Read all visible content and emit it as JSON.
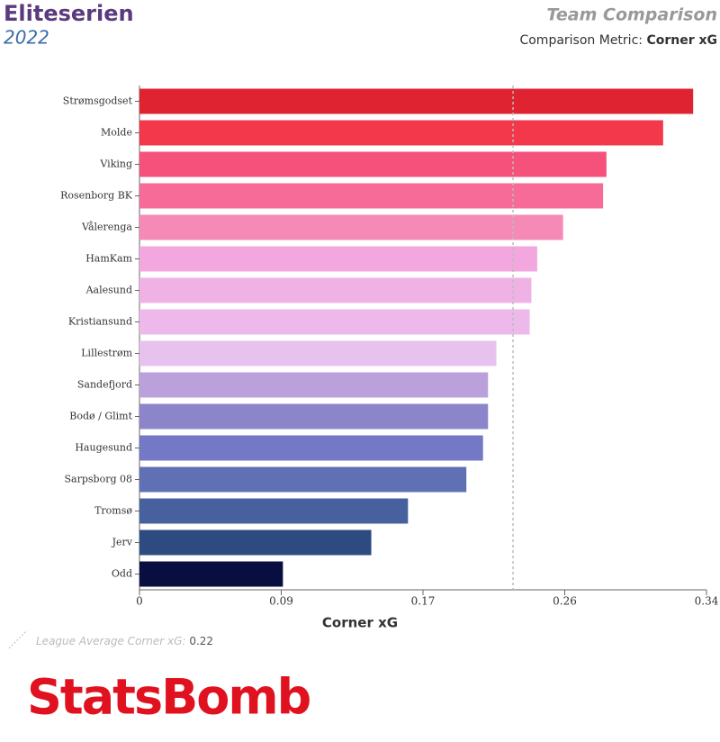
{
  "chart_data": {
    "type": "bar",
    "orientation": "horizontal",
    "title": "Eliteserien",
    "subtitle": "2022",
    "header_right": "Team Comparison",
    "metric_label": "Comparison Metric:",
    "metric": "Corner xG",
    "x_label": "Corner xG",
    "categories": [
      "Strømsgodset",
      "Molde",
      "Viking",
      "Rosenborg BK",
      "Vålerenga",
      "HamKam",
      "Aalesund",
      "Kristiansund",
      "Lillestrøm",
      "Sandefjord",
      "Bodø / Glimt",
      "Haugesund",
      "Sarpsborg 08",
      "Tromsø",
      "Jerv",
      "Odd"
    ],
    "values": [
      0.332,
      0.314,
      0.28,
      0.278,
      0.254,
      0.2385,
      0.235,
      0.234,
      0.214,
      0.209,
      0.209,
      0.206,
      0.196,
      0.161,
      0.139,
      0.086
    ],
    "colors": [
      "#df2330",
      "#f4384b",
      "#f6517b",
      "#f76b98",
      "#f68ab6",
      "#f2a7df",
      "#f0b1e5",
      "#edb9eb",
      "#e8c2ee",
      "#baa1dc",
      "#8c85c9",
      "#7379c4",
      "#6070b5",
      "#47609e",
      "#2d4a81",
      "#080e3f"
    ],
    "xlim": [
      0,
      0.34
    ],
    "xticks": [
      0,
      {
        "value": 0.085,
        "label": "0.09"
      },
      {
        "value": 0.17,
        "label": "0.17"
      },
      {
        "value": 0.255,
        "label": "0.26"
      },
      0.34
    ],
    "annotation": {
      "text": "League Average Corner xG:",
      "value": 0.224,
      "value_label": "0.22"
    },
    "brand": "StatsBomb"
  }
}
